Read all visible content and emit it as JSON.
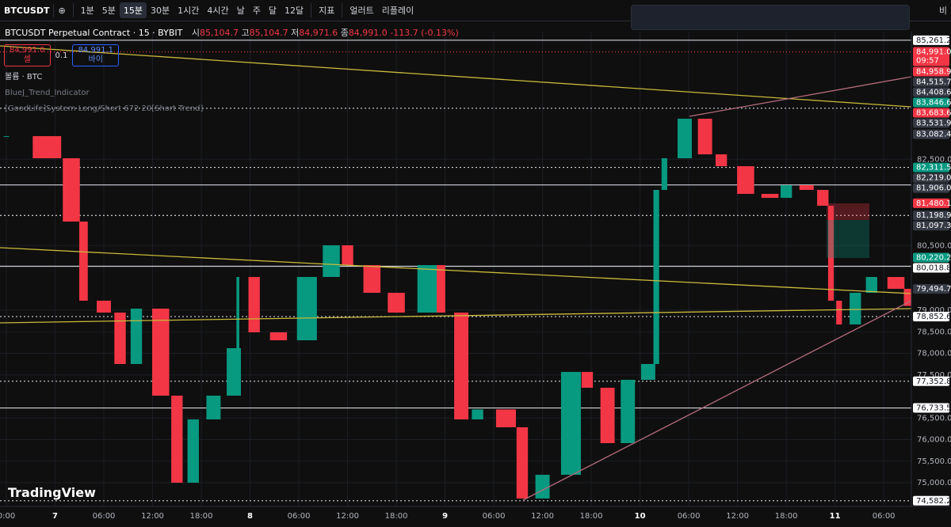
{
  "toolbar": {
    "symbol": "BTCUSDT",
    "intervals": [
      "1분",
      "5분",
      "15분",
      "30분",
      "1시간",
      "4시간",
      "날",
      "주",
      "달",
      "12달"
    ],
    "indicators": "지표",
    "alert": "얼러트",
    "replay": "리플레이",
    "corner": "비"
  },
  "legend": {
    "title": "BTCUSDT Perpetual Contract · 15 · BYBIT",
    "open_label": "시",
    "open": "85,104.7",
    "high_label": "고",
    "high": "85,104.7",
    "low_label": "저",
    "low": "84,971.6",
    "close_label": "종",
    "close": "84,991.0",
    "change": "-113.7 (-0.13%)"
  },
  "trade": {
    "sell_price": "84,991.0",
    "sell": "셀",
    "spread": "0.1",
    "buy_price": "84,991.1",
    "buy": "바이"
  },
  "indicators": [
    "볼륨 · BTC",
    "BlueJ_Trend_Indicator",
    "[GoodLife]System Long/Short 672 20[Short Trend]"
  ],
  "logo": "TradingView",
  "chart_data": {
    "type": "candlestick",
    "x": [
      0,
      5,
      8,
      9.5,
      12,
      14,
      16,
      19,
      21,
      23,
      25.5,
      28,
      28.5,
      30.5,
      33.5,
      37,
      40,
      42,
      45,
      48,
      52,
      53.5,
      56,
      58,
      61.5,
      63.5,
      66,
      69.5,
      71.5,
      74,
      76.5,
      79,
      80,
      81,
      83.5,
      86,
      88,
      91,
      94,
      96,
      98.5,
      100.5,
      101.5,
      102.5,
      104.5,
      106.5,
      109.5,
      111
    ],
    "close": [
      83037,
      82524,
      81056,
      79221,
      78945,
      77753,
      79037,
      77019,
      75000,
      76468,
      77019,
      78120,
      79771,
      78487,
      78303,
      79771,
      80505,
      80046,
      79404,
      78945,
      80046,
      78945,
      76468,
      76700,
      76285,
      74633,
      75184,
      77569,
      77202,
      75918,
      77386,
      77753,
      81790,
      82524,
      83441,
      82615,
      82340,
      81698,
      81606,
      81900,
      81790,
      81423,
      79221,
      78670,
      79404,
      79771,
      79496,
      79100
    ],
    "xlim": [
      -0.78,
      111.4
    ],
    "xticks": [
      {
        "value": 0,
        "label": "0:00"
      },
      {
        "value": 6,
        "label": "7"
      },
      {
        "value": 12,
        "label": "06:00"
      },
      {
        "value": 18,
        "label": "12:00"
      },
      {
        "value": 24,
        "label": "18:00"
      },
      {
        "value": 30,
        "label": "8"
      },
      {
        "value": 36,
        "label": "06:00"
      },
      {
        "value": 42,
        "label": "12:00"
      },
      {
        "value": 48,
        "label": "18:00"
      },
      {
        "value": 54,
        "label": "9"
      },
      {
        "value": 60,
        "label": "06:00"
      },
      {
        "value": 66,
        "label": "12:00"
      },
      {
        "value": 72,
        "label": "18:00"
      },
      {
        "value": 78,
        "label": "10"
      },
      {
        "value": 84,
        "label": "06:00"
      },
      {
        "value": 90,
        "label": "12:00"
      },
      {
        "value": 96,
        "label": "18:00"
      },
      {
        "value": 102,
        "label": "11"
      },
      {
        "value": 108,
        "label": "06:00"
      }
    ],
    "ylim": [
      74450,
      85460
    ],
    "yticks": [
      {
        "value": 82500,
        "label": "82,500.0"
      },
      {
        "value": 80500,
        "label": "80,500.0"
      },
      {
        "value": 79000,
        "label": "79,000.0"
      },
      {
        "value": 78500,
        "label": "78,500.0"
      },
      {
        "value": 78000,
        "label": "78,000.0"
      },
      {
        "value": 77500,
        "label": "77,500.0"
      },
      {
        "value": 76500,
        "label": "76,500.0"
      },
      {
        "value": 76000,
        "label": "76,000.0"
      },
      {
        "value": 75500,
        "label": "75,500.0"
      },
      {
        "value": 75000,
        "label": "75,000.0"
      }
    ],
    "up_color": "#089981",
    "down_color": "#f23645",
    "price_tags": [
      {
        "value": 85261.2,
        "label": "85,261.2",
        "color": "#ffffff",
        "line": "solid"
      },
      {
        "value": 84991.0,
        "label": "84,991.0",
        "color": "#f23645",
        "line": "red",
        "sub": "09:57"
      },
      {
        "value": 84958.9,
        "label": "84,958.9",
        "color": "#f23645"
      },
      {
        "value": 84515.7,
        "label": "84,515.7",
        "color": "#363a45"
      },
      {
        "value": 84408.6,
        "label": "84,408.6",
        "color": "#363a45"
      },
      {
        "value": 83846.6,
        "label": "83,846.6",
        "color": "#089981"
      },
      {
        "value": 83683.6,
        "label": "83,683.6",
        "color": "#f23645",
        "line": "dotted"
      },
      {
        "value": 83531.9,
        "label": "83,531.9",
        "color": "#363a45"
      },
      {
        "value": 83082.4,
        "label": "83,082.4",
        "color": "#363a45"
      },
      {
        "value": 82311.5,
        "label": "82,311.5",
        "color": "#089981",
        "line": "dotted"
      },
      {
        "value": 82219.0,
        "label": "82,219.0",
        "color": "#363a45"
      },
      {
        "value": 81906.0,
        "label": "81,906.0",
        "color": "#363a45",
        "line": "solid"
      },
      {
        "value": 81480.1,
        "label": "81,480.1",
        "color": "#f23645"
      },
      {
        "value": 81198.9,
        "label": "81,198.9",
        "color": "#363a45",
        "line": "dotted"
      },
      {
        "value": 81097.3,
        "label": "81,097.3",
        "color": "#363a45"
      },
      {
        "value": 80220.2,
        "label": "80,220.2",
        "color": "#089981"
      },
      {
        "value": 80018.8,
        "label": "80,018.8",
        "color": "#ffffff",
        "line": "solid"
      },
      {
        "value": 79494.7,
        "label": "79,494.7",
        "color": "#363a45"
      },
      {
        "value": 78852.6,
        "label": "78,852.6",
        "color": "#ffffff",
        "line": "dotted"
      },
      {
        "value": 77352.8,
        "label": "77,352.8",
        "color": "#ffffff",
        "line": "dotted"
      },
      {
        "value": 76733.5,
        "label": "76,733.5",
        "color": "#ffffff",
        "line": "solid"
      },
      {
        "value": 74582.2,
        "label": "74,582.2",
        "color": "#ffffff",
        "line": "dotted"
      }
    ]
  }
}
